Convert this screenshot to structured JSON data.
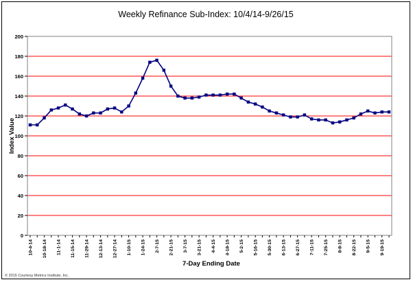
{
  "chart_data": {
    "type": "line",
    "title": "Weekly Refinance Sub-Index: 10/4/14-9/26/15",
    "xlabel": "7-Day Ending Date",
    "ylabel": "Index Value",
    "ylim": [
      0,
      200
    ],
    "yticks": [
      0,
      20,
      40,
      60,
      80,
      100,
      120,
      140,
      160,
      180,
      200
    ],
    "grid": true,
    "legend": "none",
    "x_tick_labels": [
      "10-4-14",
      "10-18-14",
      "11-1-14",
      "11-15-14",
      "11-29-14",
      "12-13-14",
      "12-27-14",
      "1-10-15",
      "1-24-15",
      "2-7-15",
      "2-21-15",
      "3-7-15",
      "3-21-15",
      "4-4-15",
      "4-18-15",
      "5-2-15",
      "5-16-15",
      "5-30-15",
      "6-13-15",
      "6-27-15",
      "7-11-15",
      "7-25-15",
      "8-8-15",
      "8-22-15",
      "9-5-15",
      "9-19-15"
    ],
    "series": [
      {
        "values": [
          111,
          111,
          118,
          126,
          128,
          131,
          127,
          122,
          120,
          123,
          123,
          127,
          128,
          124,
          130,
          143,
          158,
          174,
          176,
          166,
          150,
          140,
          138,
          138,
          139,
          141,
          141,
          141,
          142,
          142,
          138,
          134,
          132,
          129,
          125,
          123,
          121,
          119,
          119,
          121,
          117,
          116,
          116,
          113,
          114,
          116,
          118,
          122,
          125,
          123,
          124,
          124
        ]
      }
    ],
    "colors": {
      "line": "#000080",
      "marker": "#000080",
      "gridline": "#ff0000",
      "plot_border": "#808080"
    },
    "copyright": "© 2015 Courtesy Metrics Institute, Inc."
  }
}
